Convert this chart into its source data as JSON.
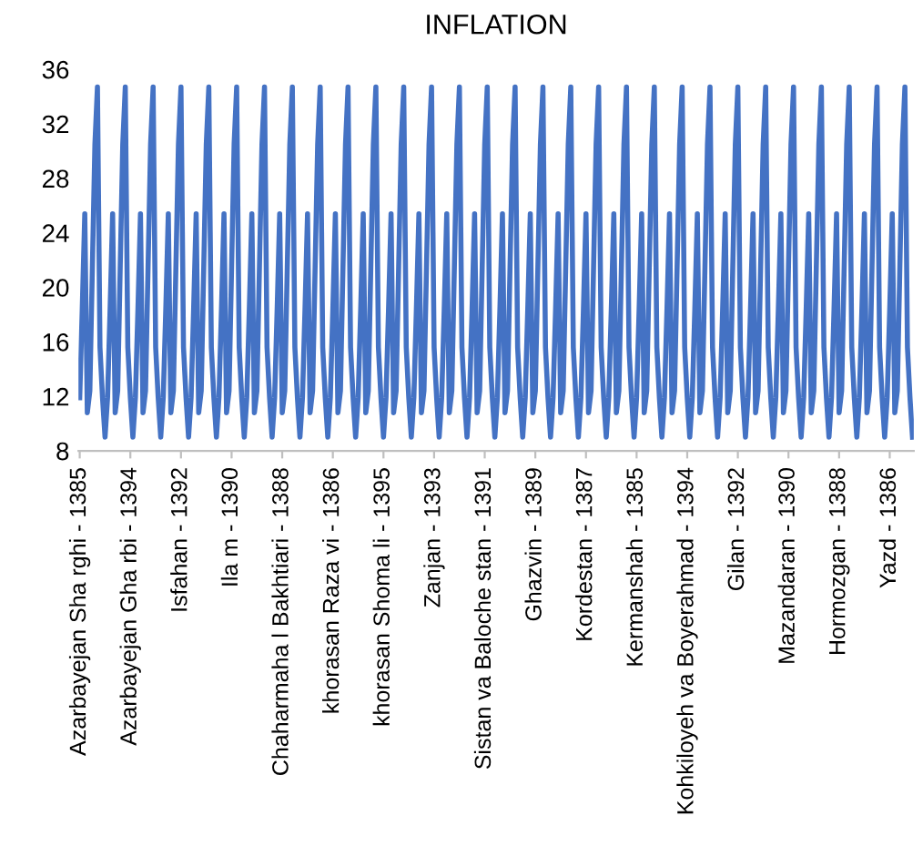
{
  "chart_data": {
    "type": "line",
    "title": "INFLATION",
    "color": "#4472c4",
    "ylim": [
      8,
      36
    ],
    "yticks": [
      8,
      12,
      16,
      20,
      24,
      28,
      32,
      36
    ],
    "grid": false,
    "marker": "none",
    "line_style": "solid",
    "categories": [
      "Azarbayejan Sha rghi - 1385",
      null,
      null,
      null,
      null,
      null,
      null,
      null,
      null,
      null,
      null,
      null,
      null,
      null,
      null,
      null,
      null,
      null,
      null,
      null,
      "Azarbayejan Gha rbi - 1394",
      null,
      null,
      null,
      null,
      null,
      null,
      null,
      null,
      null,
      null,
      null,
      null,
      null,
      null,
      null,
      null,
      null,
      null,
      null,
      "Isfahan - 1392",
      null,
      null,
      null,
      null,
      null,
      null,
      null,
      null,
      null,
      null,
      null,
      null,
      null,
      null,
      null,
      null,
      null,
      null,
      null,
      "Ila m - 1390",
      null,
      null,
      null,
      null,
      null,
      null,
      null,
      null,
      null,
      null,
      null,
      null,
      null,
      null,
      null,
      null,
      null,
      null,
      null,
      "Chaharmaha l Bakhtiari - 1388",
      null,
      null,
      null,
      null,
      null,
      null,
      null,
      null,
      null,
      null,
      null,
      null,
      null,
      null,
      null,
      null,
      null,
      null,
      null,
      "khorasan Raza vi - 1386",
      null,
      null,
      null,
      null,
      null,
      null,
      null,
      null,
      null,
      null,
      null,
      null,
      null,
      null,
      null,
      null,
      null,
      null,
      null,
      "khorasan Shoma li - 1395",
      null,
      null,
      null,
      null,
      null,
      null,
      null,
      null,
      null,
      null,
      null,
      null,
      null,
      null,
      null,
      null,
      null,
      null,
      null,
      "Zanjan - 1393",
      null,
      null,
      null,
      null,
      null,
      null,
      null,
      null,
      null,
      null,
      null,
      null,
      null,
      null,
      null,
      null,
      null,
      null,
      null,
      "Sistan va Baloche stan - 1391",
      null,
      null,
      null,
      null,
      null,
      null,
      null,
      null,
      null,
      null,
      null,
      null,
      null,
      null,
      null,
      null,
      null,
      null,
      null,
      "Ghazvin - 1389",
      null,
      null,
      null,
      null,
      null,
      null,
      null,
      null,
      null,
      null,
      null,
      null,
      null,
      null,
      null,
      null,
      null,
      null,
      null,
      "Kordestan - 1387",
      null,
      null,
      null,
      null,
      null,
      null,
      null,
      null,
      null,
      null,
      null,
      null,
      null,
      null,
      null,
      null,
      null,
      null,
      null,
      "Kermanshah - 1385",
      null,
      null,
      null,
      null,
      null,
      null,
      null,
      null,
      null,
      null,
      null,
      null,
      null,
      null,
      null,
      null,
      null,
      null,
      null,
      "Kohkiloyeh va Boyerahmad - 1394",
      null,
      null,
      null,
      null,
      null,
      null,
      null,
      null,
      null,
      null,
      null,
      null,
      null,
      null,
      null,
      null,
      null,
      null,
      null,
      "Gilan - 1392",
      null,
      null,
      null,
      null,
      null,
      null,
      null,
      null,
      null,
      null,
      null,
      null,
      null,
      null,
      null,
      null,
      null,
      null,
      null,
      "Mazandaran - 1390",
      null,
      null,
      null,
      null,
      null,
      null,
      null,
      null,
      null,
      null,
      null,
      null,
      null,
      null,
      null,
      null,
      null,
      null,
      null,
      "Hormozgan - 1388",
      null,
      null,
      null,
      null,
      null,
      null,
      null,
      null,
      null,
      null,
      null,
      null,
      null,
      null,
      null,
      null,
      null,
      null,
      null,
      "Yazd - 1386",
      null,
      null,
      null,
      null,
      null,
      null,
      null,
      null,
      null
    ],
    "values": [
      11.9,
      18.4,
      25.4,
      10.8,
      12.4,
      21.5,
      30.5,
      34.7,
      15.6,
      11.9,
      9.0,
      11.9,
      18.4,
      25.4,
      10.8,
      12.4,
      21.5,
      30.5,
      34.7,
      15.6,
      11.9,
      9.0,
      11.9,
      18.4,
      25.4,
      10.8,
      12.4,
      21.5,
      30.5,
      34.7,
      15.6,
      11.9,
      9.0,
      11.9,
      18.4,
      25.4,
      10.8,
      12.4,
      21.5,
      30.5,
      34.7,
      15.6,
      11.9,
      9.0,
      11.9,
      18.4,
      25.4,
      10.8,
      12.4,
      21.5,
      30.5,
      34.7,
      15.6,
      11.9,
      9.0,
      11.9,
      18.4,
      25.4,
      10.8,
      12.4,
      21.5,
      30.5,
      34.7,
      15.6,
      11.9,
      9.0,
      11.9,
      18.4,
      25.4,
      10.8,
      12.4,
      21.5,
      30.5,
      34.7,
      15.6,
      11.9,
      9.0,
      11.9,
      18.4,
      25.4,
      10.8,
      12.4,
      21.5,
      30.5,
      34.7,
      15.6,
      11.9,
      9.0,
      11.9,
      18.4,
      25.4,
      10.8,
      12.4,
      21.5,
      30.5,
      34.7,
      15.6,
      11.9,
      9.0,
      11.9,
      18.4,
      25.4,
      10.8,
      12.4,
      21.5,
      30.5,
      34.7,
      15.6,
      11.9,
      9.0,
      11.9,
      18.4,
      25.4,
      10.8,
      12.4,
      21.5,
      30.5,
      34.7,
      15.6,
      11.9,
      9.0,
      11.9,
      18.4,
      25.4,
      10.8,
      12.4,
      21.5,
      30.5,
      34.7,
      15.6,
      11.9,
      9.0,
      11.9,
      18.4,
      25.4,
      10.8,
      12.4,
      21.5,
      30.5,
      34.7,
      15.6,
      11.9,
      9.0,
      11.9,
      18.4,
      25.4,
      10.8,
      12.4,
      21.5,
      30.5,
      34.7,
      15.6,
      11.9,
      9.0,
      11.9,
      18.4,
      25.4,
      10.8,
      12.4,
      21.5,
      30.5,
      34.7,
      15.6,
      11.9,
      9.0,
      11.9,
      18.4,
      25.4,
      10.8,
      12.4,
      21.5,
      30.5,
      34.7,
      15.6,
      11.9,
      9.0,
      11.9,
      18.4,
      25.4,
      10.8,
      12.4,
      21.5,
      30.5,
      34.7,
      15.6,
      11.9,
      9.0,
      11.9,
      18.4,
      25.4,
      10.8,
      12.4,
      21.5,
      30.5,
      34.7,
      15.6,
      11.9,
      9.0,
      11.9,
      18.4,
      25.4,
      10.8,
      12.4,
      21.5,
      30.5,
      34.7,
      15.6,
      11.9,
      9.0,
      11.9,
      18.4,
      25.4,
      10.8,
      12.4,
      21.5,
      30.5,
      34.7,
      15.6,
      11.9,
      9.0,
      11.9,
      18.4,
      25.4,
      10.8,
      12.4,
      21.5,
      30.5,
      34.7,
      15.6,
      11.9,
      9.0,
      11.9,
      18.4,
      25.4,
      10.8,
      12.4,
      21.5,
      30.5,
      34.7,
      15.6,
      11.9,
      9.0,
      11.9,
      18.4,
      25.4,
      10.8,
      12.4,
      21.5,
      30.5,
      34.7,
      15.6,
      11.9,
      9.0,
      11.9,
      18.4,
      25.4,
      10.8,
      12.4,
      21.5,
      30.5,
      34.7,
      15.6,
      11.9,
      9.0,
      11.9,
      18.4,
      25.4,
      10.8,
      12.4,
      21.5,
      30.5,
      34.7,
      15.6,
      11.9,
      9.0,
      11.9,
      18.4,
      25.4,
      10.8,
      12.4,
      21.5,
      30.5,
      34.7,
      15.6,
      11.9,
      9.0,
      11.9,
      18.4,
      25.4,
      10.8,
      12.4,
      21.5,
      30.5,
      34.7,
      15.6,
      11.9,
      9.0,
      11.9,
      18.4,
      25.4,
      10.8,
      12.4,
      21.5,
      30.5,
      34.7,
      15.6,
      11.9,
      9.0,
      11.9,
      18.4,
      25.4,
      10.8,
      12.4,
      21.5,
      30.5,
      34.7,
      15.6,
      11.9,
      9.0,
      11.9,
      18.4,
      25.4,
      10.8,
      12.4,
      21.5,
      30.5,
      34.7,
      15.6,
      11.9,
      9.0
    ]
  }
}
